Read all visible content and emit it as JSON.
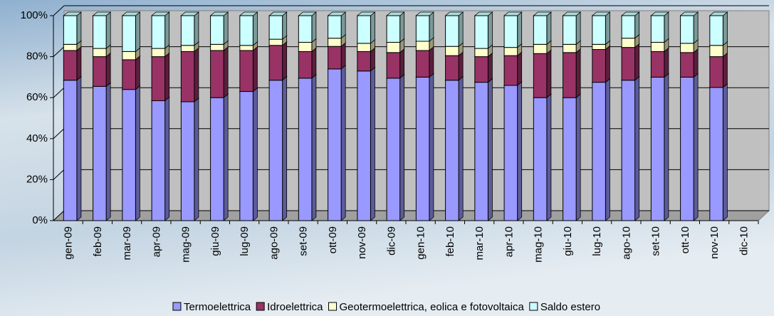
{
  "chart_data": {
    "type": "stacked-bar-100",
    "categories": [
      "gen-09",
      "feb-09",
      "mar-09",
      "apr-09",
      "mag-09",
      "giu-09",
      "lug-09",
      "ago-09",
      "set-09",
      "ott-09",
      "nov-09",
      "dic-09",
      "gen-10",
      "feb-10",
      "mar-10",
      "apr-10",
      "mag-10",
      "giu-10",
      "lug-10",
      "ago-10",
      "set-10",
      "ott-10",
      "nov-10",
      "dic-10"
    ],
    "series": [
      {
        "name": "Termoelettrica",
        "color": "#9999ff",
        "values": [
          68.5,
          65.5,
          64,
          58.5,
          58,
          60,
          63,
          68.5,
          69.5,
          74,
          73,
          69.5,
          70,
          68.5,
          67.5,
          66,
          60,
          60,
          67.5,
          68.5,
          70,
          70,
          65,
          null
        ]
      },
      {
        "name": "Idroelettrica",
        "color": "#993366",
        "values": [
          14.5,
          14.5,
          14.5,
          21.5,
          24.5,
          23,
          20,
          17,
          13,
          11,
          9.5,
          12.5,
          13,
          12,
          12.5,
          14.5,
          21.5,
          22,
          16,
          16,
          12.5,
          12,
          15,
          null
        ]
      },
      {
        "name": "Geotermoelettrica, eolica e fotovoltaica",
        "color": "#ffffcc",
        "values": [
          3,
          4,
          4,
          4,
          3,
          3,
          2.5,
          3,
          4.5,
          4,
          4,
          5,
          4.5,
          4.5,
          4,
          4,
          4.5,
          4,
          2.5,
          4.5,
          4.5,
          4.5,
          5.5,
          null
        ]
      },
      {
        "name": "Saldo estero",
        "color": "#ccffff",
        "values": [
          14,
          16,
          17.5,
          16,
          14.5,
          14,
          14.5,
          11.5,
          13,
          11,
          13.5,
          13,
          12.5,
          15,
          16,
          15.5,
          14,
          14,
          14,
          11,
          13,
          13.5,
          14.5,
          null
        ]
      }
    ],
    "ylim": [
      0,
      100
    ],
    "yticks": [
      {
        "value": 0,
        "label": "0%"
      },
      {
        "value": 20,
        "label": "20%"
      },
      {
        "value": 40,
        "label": "40%"
      },
      {
        "value": 60,
        "label": "60%"
      },
      {
        "value": 80,
        "label": "80%"
      },
      {
        "value": 100,
        "label": "100%"
      }
    ],
    "grid": true
  }
}
